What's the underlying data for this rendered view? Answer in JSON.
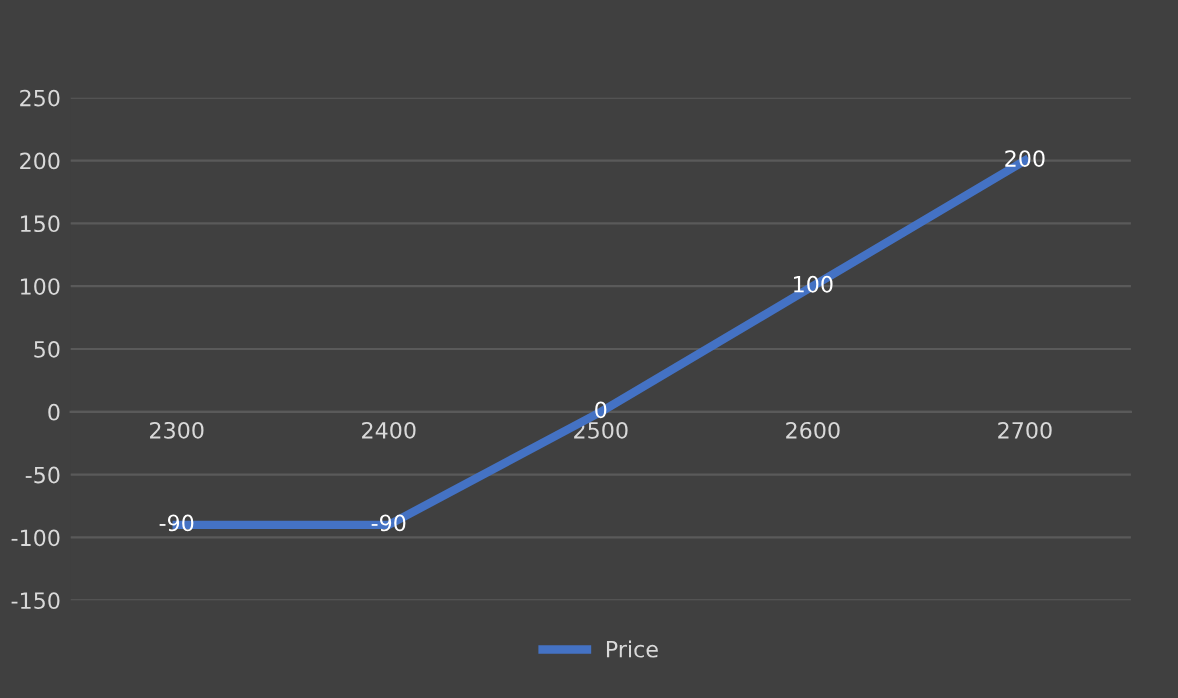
{
  "chart_data": {
    "type": "line",
    "categories": [
      "2300",
      "2400",
      "2500",
      "2600",
      "2700"
    ],
    "series": [
      {
        "name": "Price",
        "color": "#4472c4",
        "values": [
          -90,
          -90,
          0,
          100,
          200
        ]
      }
    ],
    "ylim": [
      -150,
      250
    ],
    "yticks": [
      -150,
      -100,
      -50,
      0,
      50,
      100,
      150,
      200,
      250
    ],
    "grid": "y",
    "legend": "bottom",
    "data_labels": true,
    "marker": "none",
    "line_style": "solid"
  }
}
